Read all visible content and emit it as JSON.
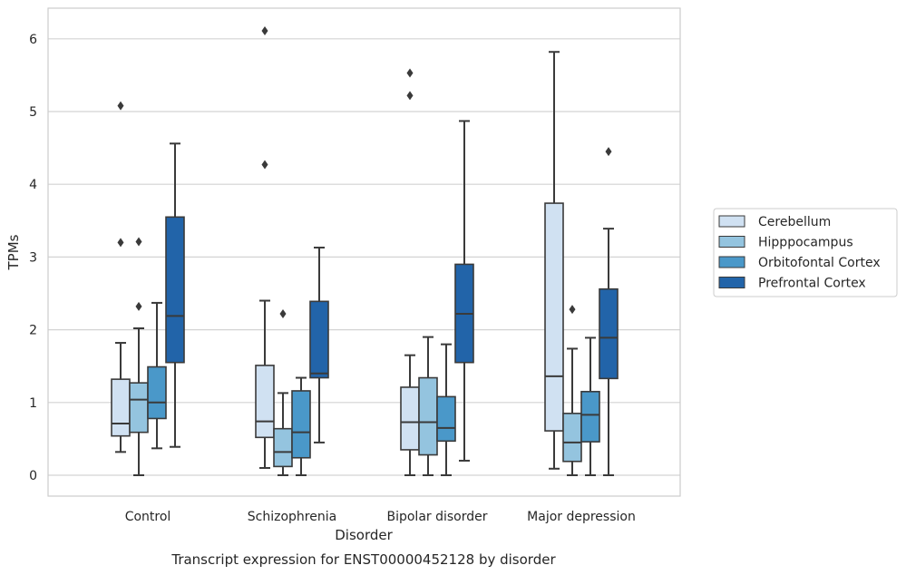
{
  "chart_data": {
    "type": "box",
    "title": "",
    "caption": "Transcript expression for ENST00000452128 by disorder",
    "xlabel": "Disorder",
    "ylabel": "TPMs",
    "ylim": [
      -0.3,
      6.4
    ],
    "yticks": [
      0,
      1,
      2,
      3,
      4,
      5,
      6
    ],
    "grid": "horizontal",
    "legend_position": "right",
    "categories": [
      "Control",
      "Schizophrenia",
      "Bipolar disorder",
      "Major depression"
    ],
    "series": [
      {
        "name": "Cerebellum",
        "color": "#d0e1f2",
        "boxes": [
          {
            "whislo": 0.32,
            "q1": 0.54,
            "med": 0.71,
            "q3": 1.32,
            "whishi": 1.82,
            "fliers": [
              3.2,
              5.08
            ]
          },
          {
            "whislo": 0.1,
            "q1": 0.52,
            "med": 0.74,
            "q3": 1.51,
            "whishi": 2.4,
            "fliers": [
              4.27,
              6.11
            ]
          },
          {
            "whislo": 0.0,
            "q1": 0.35,
            "med": 0.73,
            "q3": 1.21,
            "whishi": 1.65,
            "fliers": [
              5.22,
              5.53
            ]
          },
          {
            "whislo": 0.09,
            "q1": 0.61,
            "med": 1.36,
            "q3": 3.74,
            "whishi": 5.82,
            "fliers": []
          }
        ]
      },
      {
        "name": "Hipppocampus",
        "color": "#94c4df",
        "boxes": [
          {
            "whislo": 0.0,
            "q1": 0.59,
            "med": 1.04,
            "q3": 1.27,
            "whishi": 2.02,
            "fliers": [
              2.32,
              3.21
            ]
          },
          {
            "whislo": 0.0,
            "q1": 0.12,
            "med": 0.32,
            "q3": 0.64,
            "whishi": 1.13,
            "fliers": [
              2.22
            ]
          },
          {
            "whislo": 0.0,
            "q1": 0.28,
            "med": 0.73,
            "q3": 1.34,
            "whishi": 1.9,
            "fliers": []
          },
          {
            "whislo": 0.0,
            "q1": 0.19,
            "med": 0.45,
            "q3": 0.85,
            "whishi": 1.74,
            "fliers": [
              2.28
            ]
          }
        ]
      },
      {
        "name": "Orbitofontal Cortex",
        "color": "#4a98c9",
        "boxes": [
          {
            "whislo": 0.37,
            "q1": 0.78,
            "med": 1.0,
            "q3": 1.49,
            "whishi": 2.37,
            "fliers": []
          },
          {
            "whislo": 0.0,
            "q1": 0.24,
            "med": 0.59,
            "q3": 1.16,
            "whishi": 1.34,
            "fliers": []
          },
          {
            "whislo": 0.0,
            "q1": 0.47,
            "med": 0.65,
            "q3": 1.08,
            "whishi": 1.8,
            "fliers": []
          },
          {
            "whislo": 0.0,
            "q1": 0.46,
            "med": 0.83,
            "q3": 1.15,
            "whishi": 1.89,
            "fliers": []
          }
        ]
      },
      {
        "name": "Prefrontal Cortex",
        "color": "#2264a9",
        "boxes": [
          {
            "whislo": 0.39,
            "q1": 1.55,
            "med": 2.19,
            "q3": 3.55,
            "whishi": 4.56,
            "fliers": []
          },
          {
            "whislo": 0.45,
            "q1": 1.34,
            "med": 1.4,
            "q3": 2.39,
            "whishi": 3.13,
            "fliers": []
          },
          {
            "whislo": 0.2,
            "q1": 1.55,
            "med": 2.22,
            "q3": 2.9,
            "whishi": 4.87,
            "fliers": []
          },
          {
            "whislo": 0.0,
            "q1": 1.33,
            "med": 1.89,
            "q3": 2.56,
            "whishi": 3.39,
            "fliers": [
              4.45
            ]
          }
        ]
      }
    ]
  }
}
